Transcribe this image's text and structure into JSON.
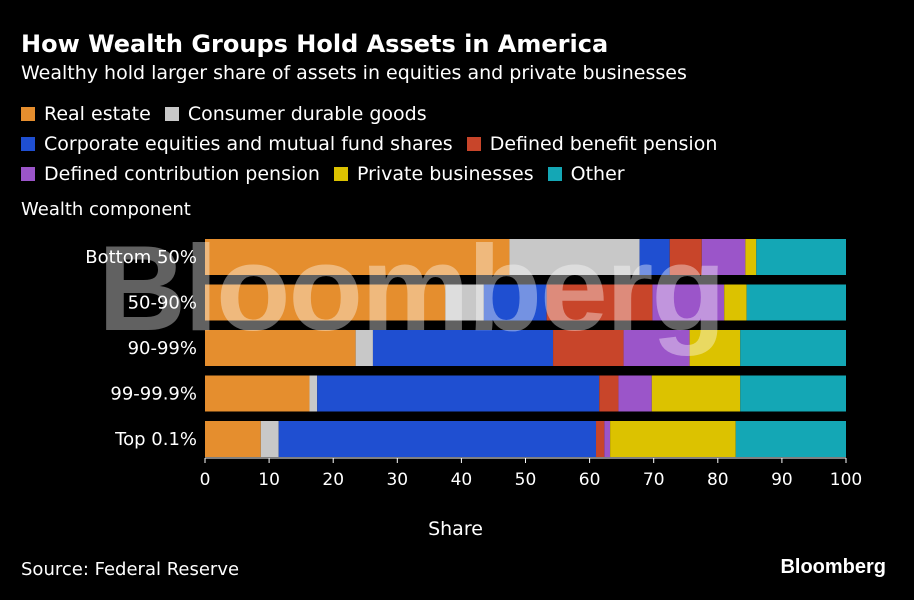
{
  "title": "How Wealth Groups Hold Assets in America",
  "subtitle": "Wealthy hold larger share of assets in equities and private businesses",
  "legend": [
    {
      "label": "Real estate",
      "color": "#e58e2e"
    },
    {
      "label": "Consumer durable goods",
      "color": "#c8c8c8"
    },
    {
      "label": "Corporate equities and mutual fund shares",
      "color": "#1f4fd1"
    },
    {
      "label": "Defined benefit pension",
      "color": "#c8452a"
    },
    {
      "label": "Defined contribution pension",
      "color": "#9b55c9"
    },
    {
      "label": "Private businesses",
      "color": "#dcc200"
    },
    {
      "label": "Other",
      "color": "#14a7b5"
    }
  ],
  "y_axis_title": "Wealth component",
  "source": "Source: Federal Reserve",
  "brand": "Bloomberg",
  "watermark": "Bloomberg",
  "chart_data": {
    "type": "bar",
    "orientation": "horizontal",
    "stacked": true,
    "title": "How Wealth Groups Hold Assets in America",
    "subtitle": "Wealthy hold larger share of assets in equities and private businesses",
    "categories": [
      "Bottom 50%",
      "50-90%",
      "90-99%",
      "99-99.9%",
      "Top 0.1%"
    ],
    "xlabel": "Share",
    "ylabel": "Wealth component",
    "xlim": [
      0,
      100
    ],
    "xticks": [
      0,
      10,
      20,
      30,
      40,
      50,
      60,
      70,
      80,
      90,
      100
    ],
    "grid": false,
    "legend_position": "top",
    "series": [
      {
        "name": "Real estate",
        "color": "#e58e2e",
        "values": [
          47.5,
          37.5,
          23.5,
          16.3,
          8.7
        ]
      },
      {
        "name": "Consumer durable goods",
        "color": "#c8c8c8",
        "values": [
          20.3,
          6.0,
          2.7,
          1.2,
          2.8
        ]
      },
      {
        "name": "Corporate equities and mutual fund shares",
        "color": "#1f4fd1",
        "values": [
          4.7,
          9.8,
          28.1,
          44.0,
          49.5
        ]
      },
      {
        "name": "Defined benefit pension",
        "color": "#c8452a",
        "values": [
          5.0,
          16.5,
          11.0,
          3.0,
          1.3
        ]
      },
      {
        "name": "Defined contribution pension",
        "color": "#9b55c9",
        "values": [
          6.8,
          11.2,
          10.3,
          5.2,
          0.9
        ]
      },
      {
        "name": "Private businesses",
        "color": "#dcc200",
        "values": [
          1.7,
          3.5,
          7.9,
          13.8,
          19.6
        ]
      },
      {
        "name": "Other",
        "color": "#14a7b5",
        "values": [
          14.0,
          15.5,
          16.5,
          16.5,
          17.2
        ]
      }
    ]
  }
}
